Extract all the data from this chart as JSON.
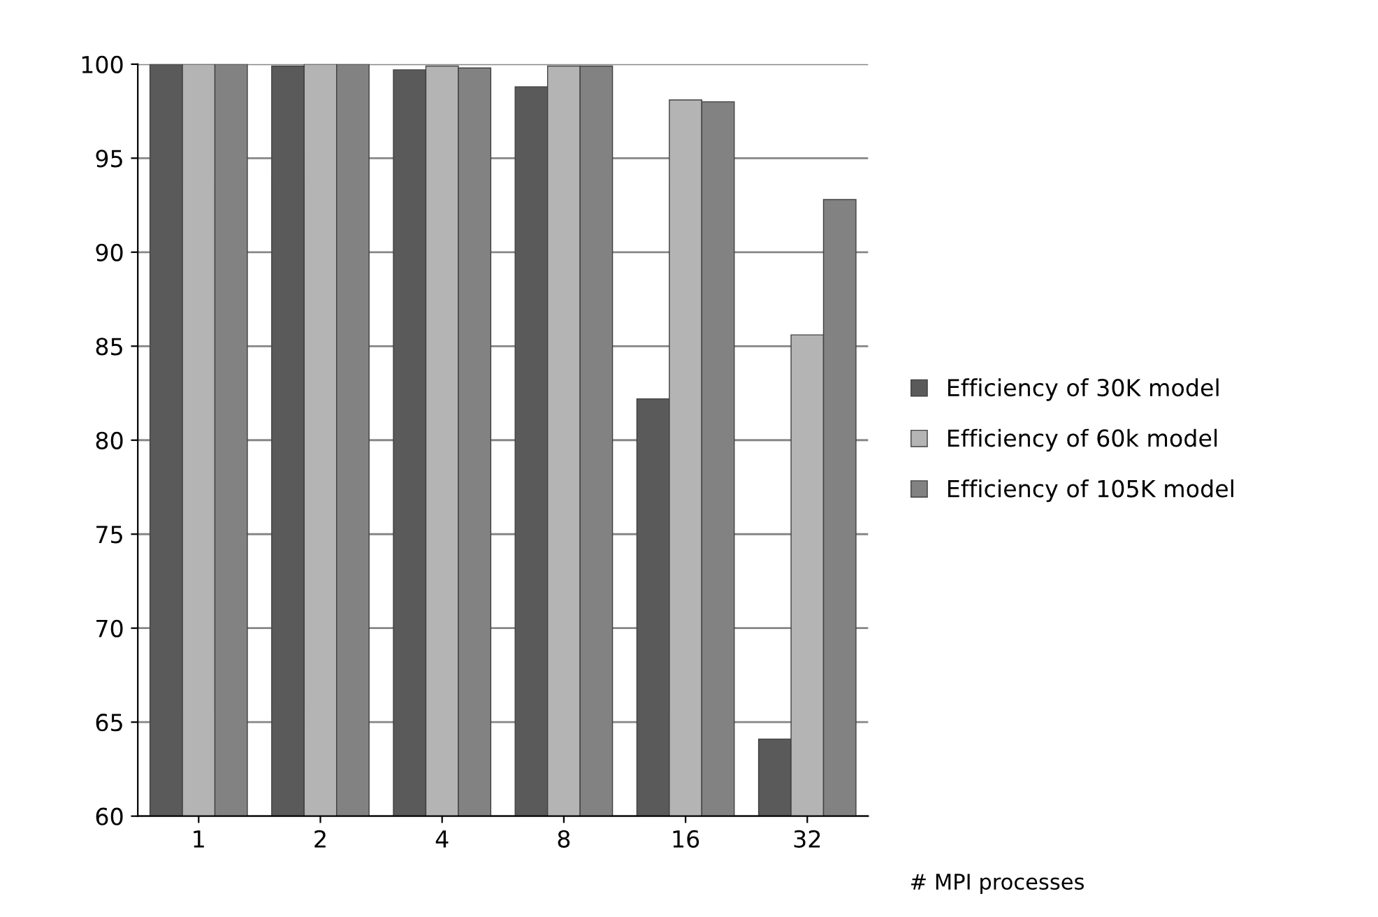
{
  "chart_data": {
    "type": "bar",
    "xlabel": "# MPI processes",
    "categories": [
      "1",
      "2",
      "4",
      "8",
      "16",
      "32"
    ],
    "series": [
      {
        "name": "Efficiency of 30K model",
        "color": "#5a5a5a",
        "values": [
          100,
          99.9,
          99.7,
          98.8,
          82.2,
          64.1
        ]
      },
      {
        "name": "Efficiency of 60k model",
        "color": "#b4b4b4",
        "values": [
          100,
          100,
          99.9,
          99.9,
          98.1,
          85.6
        ]
      },
      {
        "name": "Efficiency of 105K model",
        "color": "#828282",
        "values": [
          100,
          100,
          99.8,
          99.9,
          98.0,
          92.8
        ]
      }
    ],
    "ylim": [
      60,
      100
    ],
    "yticks": [
      60,
      65,
      70,
      75,
      80,
      85,
      90,
      95,
      100
    ],
    "grid": "y",
    "legend": "right"
  }
}
